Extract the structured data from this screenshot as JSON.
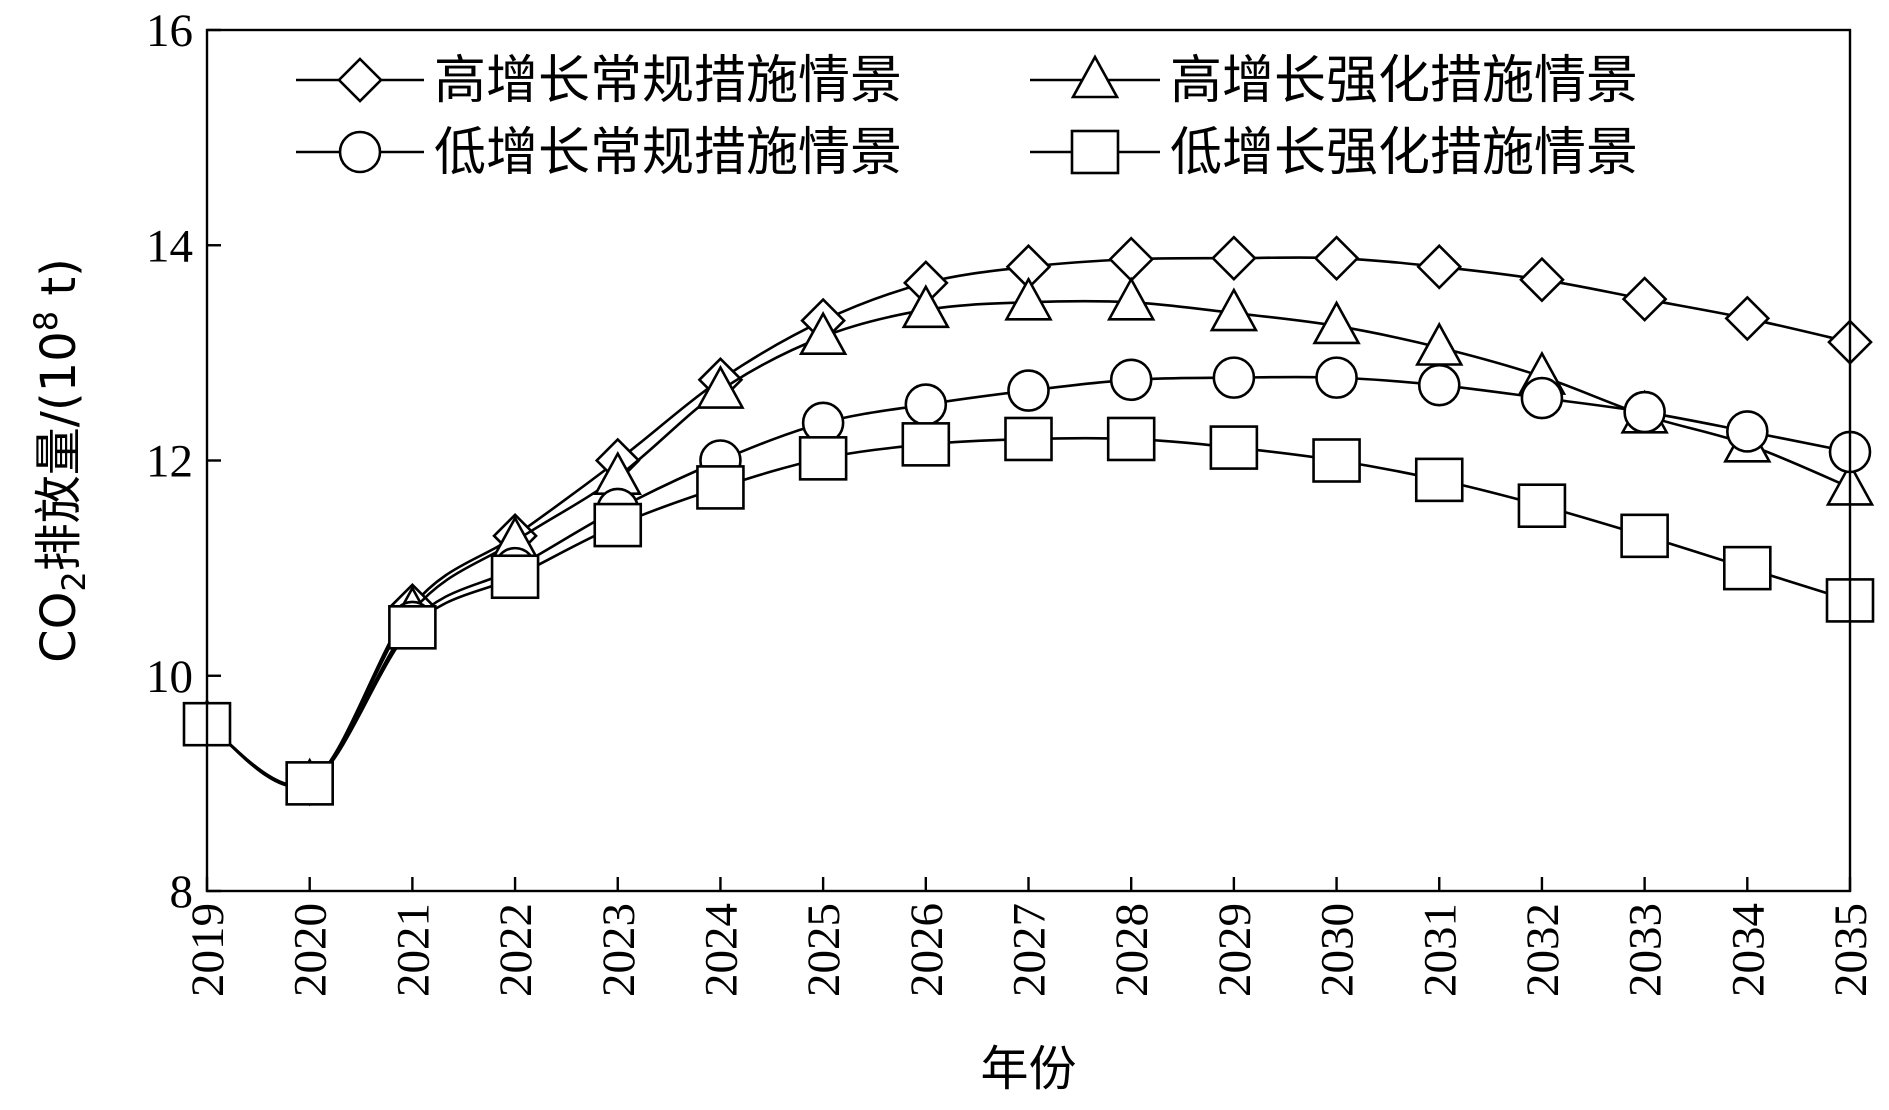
{
  "chart_data": {
    "type": "line",
    "title": "",
    "xlabel": "年份",
    "ylabel": {
      "prefix": "CO",
      "sub": "2",
      "mid": "排放量/(10",
      "sup": "8",
      "suffix": " t)"
    },
    "ylim": [
      8,
      16
    ],
    "yticks": [
      8,
      10,
      12,
      14,
      16
    ],
    "x": [
      "2019",
      "2020",
      "2021",
      "2022",
      "2023",
      "2024",
      "2025",
      "2026",
      "2027",
      "2028",
      "2029",
      "2030",
      "2031",
      "2032",
      "2033",
      "2034",
      "2035"
    ],
    "grid": false,
    "legend_position": "top",
    "series": [
      {
        "name": "高增长常规措施情景",
        "marker": "diamond",
        "values": [
          9.55,
          9.0,
          10.65,
          11.3,
          12.0,
          12.75,
          13.3,
          13.65,
          13.8,
          13.87,
          13.88,
          13.88,
          13.8,
          13.68,
          13.5,
          13.32,
          13.1
        ]
      },
      {
        "name": "高增长强化措施情景",
        "marker": "triangle",
        "values": [
          9.55,
          9.0,
          10.6,
          11.25,
          11.85,
          12.65,
          13.15,
          13.4,
          13.47,
          13.47,
          13.37,
          13.25,
          13.05,
          12.78,
          12.42,
          12.15,
          11.75
        ]
      },
      {
        "name": "低增长常规措施情景",
        "marker": "circle",
        "values": [
          9.55,
          9.0,
          10.5,
          11.0,
          11.55,
          12.0,
          12.35,
          12.52,
          12.65,
          12.75,
          12.77,
          12.77,
          12.7,
          12.58,
          12.45,
          12.27,
          12.08
        ]
      },
      {
        "name": "低增长强化措施情景",
        "marker": "square",
        "values": [
          9.55,
          9.0,
          10.45,
          10.92,
          11.4,
          11.75,
          12.02,
          12.15,
          12.2,
          12.2,
          12.12,
          12.0,
          11.82,
          11.58,
          11.3,
          11.0,
          10.7
        ]
      }
    ]
  }
}
